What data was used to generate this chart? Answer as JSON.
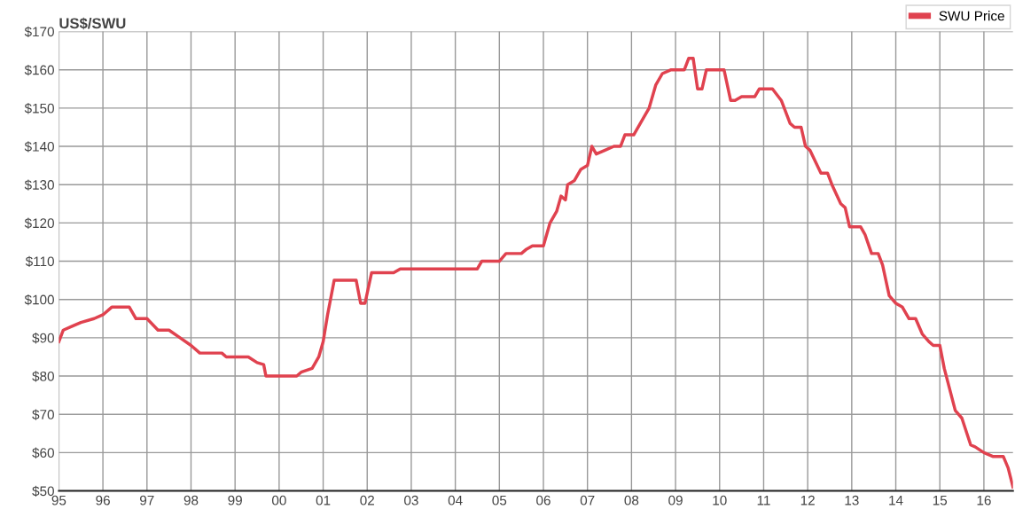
{
  "chart_data": {
    "type": "line",
    "ylabel": "US$/SWU",
    "x": [
      1995.0,
      1995.1,
      1995.3,
      1995.5,
      1995.8,
      1996.0,
      1996.2,
      1996.6,
      1996.75,
      1997.0,
      1997.25,
      1997.5,
      1997.75,
      1998.0,
      1998.2,
      1998.7,
      1998.8,
      1999.3,
      1999.5,
      1999.65,
      1999.7,
      2000.4,
      2000.5,
      2000.75,
      2000.9,
      2001.0,
      2001.1,
      2001.25,
      2001.75,
      2001.85,
      2001.95,
      2002.1,
      2002.6,
      2002.75,
      2004.5,
      2004.6,
      2005.0,
      2005.15,
      2005.5,
      2005.6,
      2005.75,
      2006.0,
      2006.15,
      2006.3,
      2006.4,
      2006.5,
      2006.55,
      2006.7,
      2006.85,
      2007.0,
      2007.1,
      2007.2,
      2007.4,
      2007.6,
      2007.75,
      2007.85,
      2008.05,
      2008.2,
      2008.4,
      2008.55,
      2008.7,
      2008.9,
      2009.2,
      2009.3,
      2009.4,
      2009.5,
      2009.6,
      2009.7,
      2010.1,
      2010.25,
      2010.35,
      2010.5,
      2010.8,
      2010.9,
      2011.2,
      2011.4,
      2011.6,
      2011.7,
      2011.85,
      2011.95,
      2012.05,
      2012.3,
      2012.45,
      2012.55,
      2012.75,
      2012.85,
      2012.95,
      2013.2,
      2013.3,
      2013.45,
      2013.6,
      2013.7,
      2013.85,
      2014.0,
      2014.15,
      2014.3,
      2014.45,
      2014.6,
      2014.75,
      2014.85,
      2015.0,
      2015.1,
      2015.35,
      2015.5,
      2015.7,
      2015.8,
      2016.0,
      2016.2,
      2016.44,
      2016.55,
      2016.66
    ],
    "series": [
      {
        "name": "SWU Price",
        "color": "#e0424f",
        "values": [
          89,
          92,
          93,
          94,
          95,
          96,
          98,
          98,
          95,
          95,
          92,
          92,
          90,
          88,
          86,
          86,
          85,
          85,
          83.5,
          83,
          80,
          80,
          81,
          82,
          85,
          89,
          96,
          105,
          105,
          99,
          99,
          107,
          107,
          108,
          108,
          110,
          110,
          112,
          112,
          113,
          114,
          114,
          120,
          123,
          127,
          126,
          130,
          131,
          134,
          135,
          140,
          138,
          139,
          140,
          140,
          143,
          143,
          146,
          150,
          156,
          159,
          160,
          160,
          163,
          163,
          155,
          155,
          160,
          160,
          152,
          152,
          153,
          153,
          155,
          155,
          152,
          146,
          145,
          145,
          140,
          139,
          133,
          133,
          130,
          125,
          124,
          119,
          119,
          117,
          112,
          112,
          109,
          101,
          99,
          98,
          95,
          95,
          91,
          89,
          88,
          88,
          82,
          71,
          69,
          62,
          61.5,
          60,
          59,
          59,
          56,
          51
        ]
      }
    ],
    "xlim": [
      1995,
      2016.66
    ],
    "xticks": [
      {
        "value": 1995,
        "label": "95"
      },
      {
        "value": 1996,
        "label": "96"
      },
      {
        "value": 1997,
        "label": "97"
      },
      {
        "value": 1998,
        "label": "98"
      },
      {
        "value": 1999,
        "label": "99"
      },
      {
        "value": 2000,
        "label": "00"
      },
      {
        "value": 2001,
        "label": "01"
      },
      {
        "value": 2002,
        "label": "02"
      },
      {
        "value": 2003,
        "label": "03"
      },
      {
        "value": 2004,
        "label": "04"
      },
      {
        "value": 2005,
        "label": "05"
      },
      {
        "value": 2006,
        "label": "06"
      },
      {
        "value": 2007,
        "label": "07"
      },
      {
        "value": 2008,
        "label": "08"
      },
      {
        "value": 2009,
        "label": "09"
      },
      {
        "value": 2010,
        "label": "10"
      },
      {
        "value": 2011,
        "label": "11"
      },
      {
        "value": 2012,
        "label": "12"
      },
      {
        "value": 2013,
        "label": "13"
      },
      {
        "value": 2014,
        "label": "14"
      },
      {
        "value": 2015,
        "label": "15"
      },
      {
        "value": 2016,
        "label": "16"
      }
    ],
    "ylim": [
      50,
      170
    ],
    "yticks": [
      {
        "value": 50,
        "label": "$50"
      },
      {
        "value": 60,
        "label": "$60"
      },
      {
        "value": 70,
        "label": "$70"
      },
      {
        "value": 80,
        "label": "$80"
      },
      {
        "value": 90,
        "label": "$90"
      },
      {
        "value": 100,
        "label": "$100"
      },
      {
        "value": 110,
        "label": "$110"
      },
      {
        "value": 120,
        "label": "$120"
      },
      {
        "value": 130,
        "label": "$130"
      },
      {
        "value": 140,
        "label": "$140"
      },
      {
        "value": 150,
        "label": "$150"
      },
      {
        "value": 160,
        "label": "$160"
      },
      {
        "value": 170,
        "label": "$170"
      }
    ],
    "grid": true,
    "legend": "top right",
    "marker": "none",
    "line_style": "solid"
  }
}
